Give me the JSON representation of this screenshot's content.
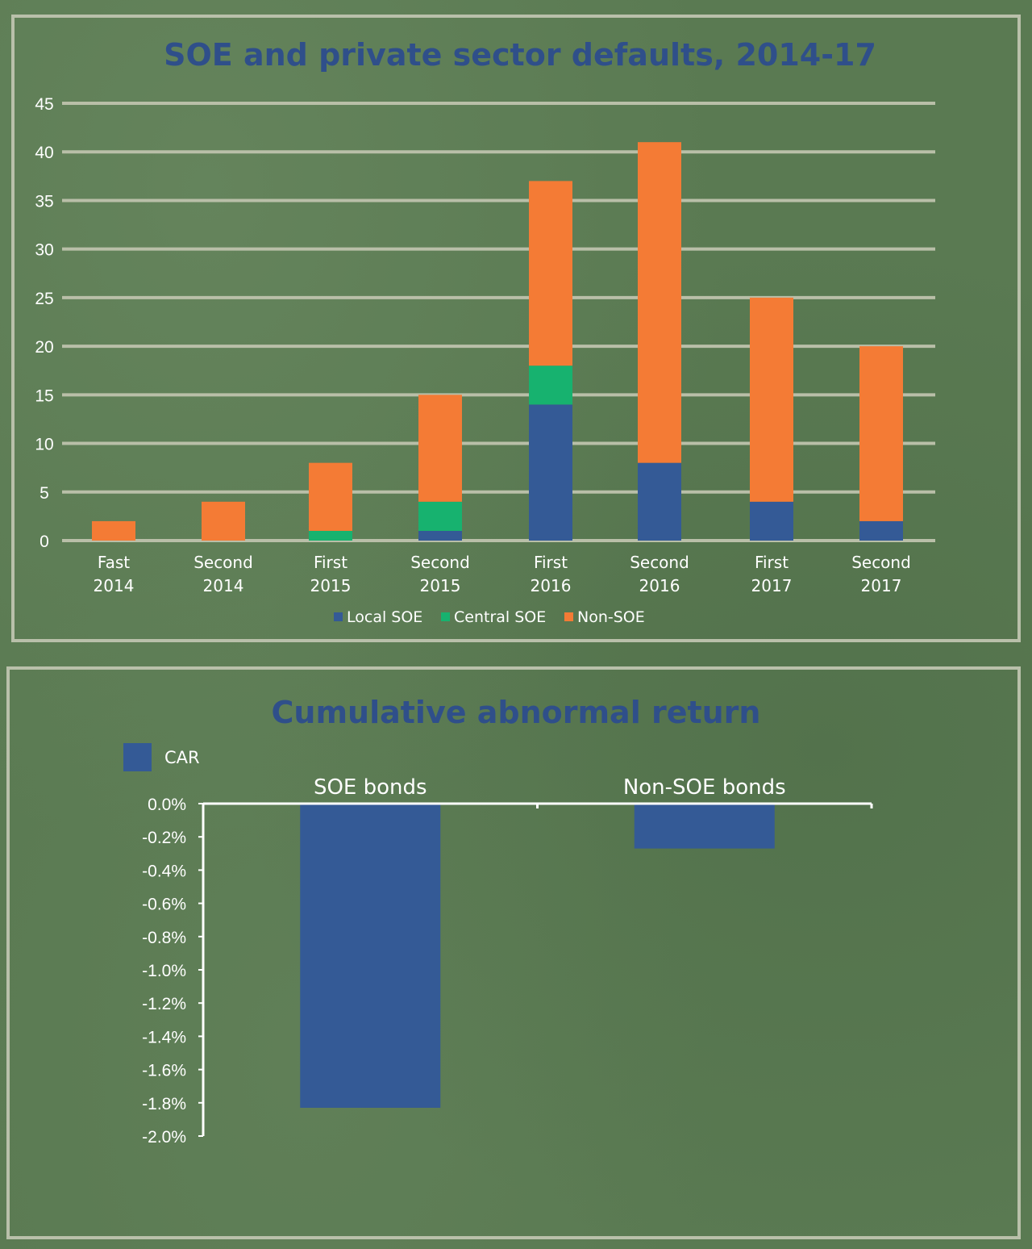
{
  "chart_data": [
    {
      "type": "bar",
      "stacked": true,
      "title": "SOE and private sector defaults, 2014-17",
      "categories": [
        [
          "Fast",
          "2014"
        ],
        [
          "Second",
          "2014"
        ],
        [
          "First",
          "2015"
        ],
        [
          "Second",
          "2015"
        ],
        [
          "First",
          "2016"
        ],
        [
          "Second",
          "2016"
        ],
        [
          "First",
          "2017"
        ],
        [
          "Second",
          "2017"
        ]
      ],
      "series": [
        {
          "name": "Local SOE",
          "color": "#345a96",
          "values": [
            0,
            0,
            0,
            1,
            14,
            8,
            4,
            2
          ]
        },
        {
          "name": "Central SOE",
          "color": "#17b26f",
          "values": [
            0,
            0,
            1,
            3,
            4,
            0,
            0,
            0
          ]
        },
        {
          "name": "Non-SOE",
          "color": "#f47b35",
          "values": [
            2,
            4,
            7,
            11,
            19,
            33,
            21,
            18
          ]
        }
      ],
      "ylim": [
        0,
        45
      ],
      "yticks": [
        "0",
        "5",
        "10",
        "15",
        "20",
        "25",
        "30",
        "35",
        "40",
        "45"
      ],
      "grid": true,
      "legend": "bottom"
    },
    {
      "type": "bar",
      "title": "Cumulative abnormal return",
      "categories": [
        "SOE bonds",
        "Non-SOE bonds"
      ],
      "series": [
        {
          "name": "CAR",
          "color": "#345a96",
          "values": [
            -0.0183,
            -0.0027
          ]
        }
      ],
      "ylim": [
        -0.02,
        0
      ],
      "yticks": [
        "0.0%",
        "-0.2%",
        "-0.4%",
        "-0.6%",
        "-0.8%",
        "-1.0%",
        "-1.2%",
        "-1.4%",
        "-1.6%",
        "-1.8%",
        "-2.0%"
      ],
      "grid": false,
      "legend": "top-left"
    }
  ]
}
